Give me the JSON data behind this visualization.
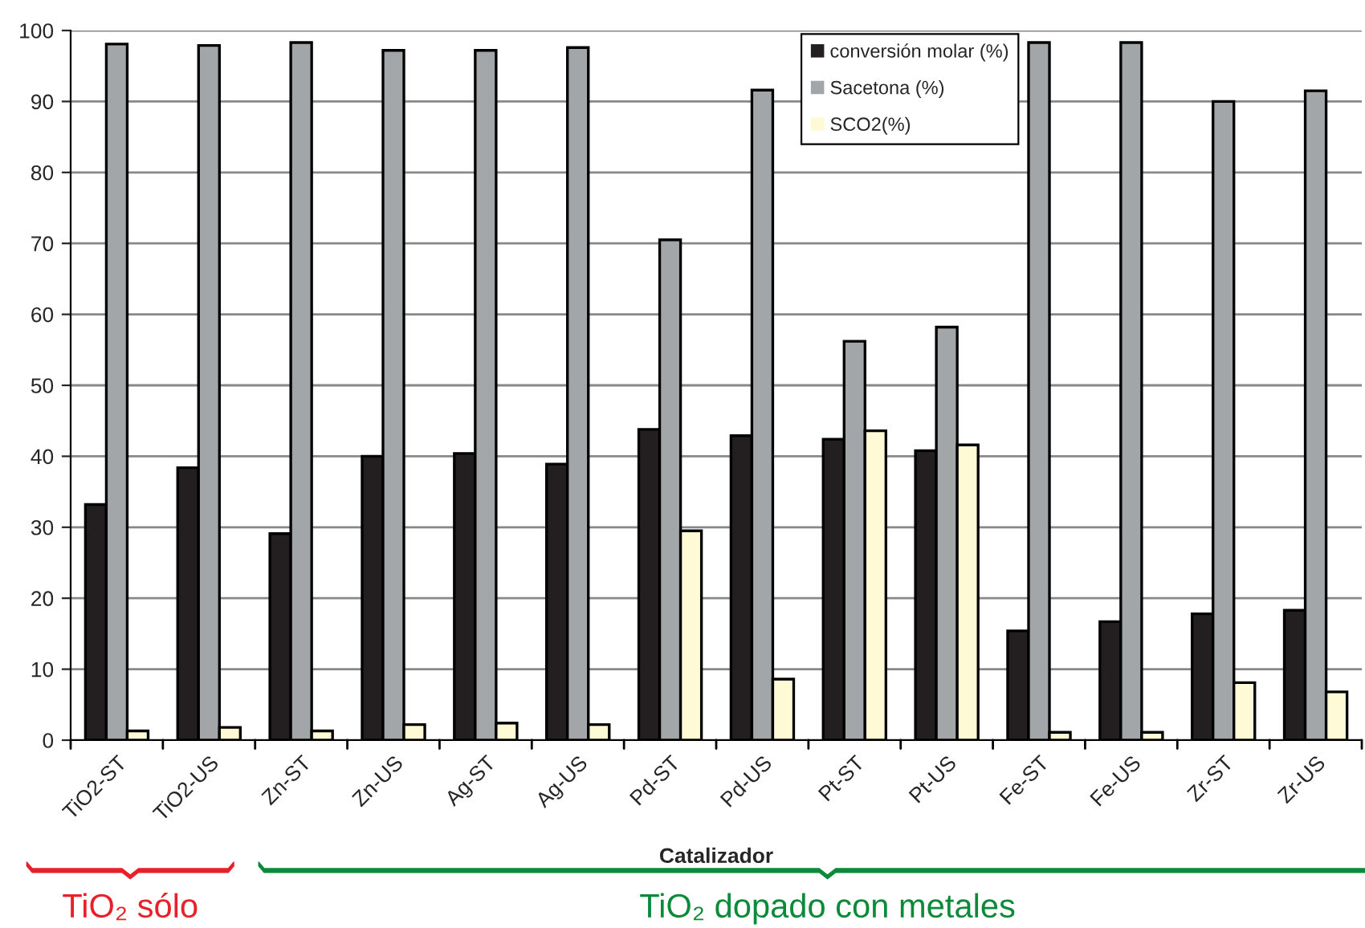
{
  "chart_data": {
    "type": "bar",
    "xlabel": "Catalizador",
    "categories": [
      "TiO2-ST",
      "TiO2-US",
      "Zn-ST",
      "Zn-US",
      "Ag-ST",
      "Ag-US",
      "Pd-ST",
      "Pd-US",
      "Pt-ST",
      "Pt-US",
      "Fe-ST",
      "Fe-US",
      "Zr-ST",
      "Zr-US"
    ],
    "series": [
      {
        "name": "conversión molar (%)",
        "color": "#231f20",
        "values": [
          33.2,
          38.4,
          29.1,
          40.0,
          40.4,
          38.9,
          43.8,
          42.9,
          42.4,
          40.8,
          15.4,
          16.7,
          17.8,
          18.3
        ]
      },
      {
        "name": "Sacetona (%)",
        "color": "#a3a6a9",
        "values": [
          98.1,
          97.9,
          98.3,
          97.2,
          97.2,
          97.6,
          70.5,
          91.6,
          56.2,
          58.2,
          98.3,
          98.3,
          90.0,
          91.5
        ]
      },
      {
        "name": "SCO2(%)",
        "color": "#fffad6",
        "values": [
          1.3,
          1.8,
          1.3,
          2.2,
          2.4,
          2.2,
          29.5,
          8.6,
          43.6,
          41.6,
          1.1,
          1.1,
          8.1,
          6.8
        ]
      }
    ],
    "ylim": [
      0,
      100
    ],
    "yticks": [
      0,
      10,
      20,
      30,
      40,
      50,
      60,
      70,
      80,
      90,
      100
    ],
    "grid": "y",
    "legend": "top",
    "annotations": [
      "TiO₂ sólo",
      "TiO₂ dopado con metales"
    ]
  }
}
